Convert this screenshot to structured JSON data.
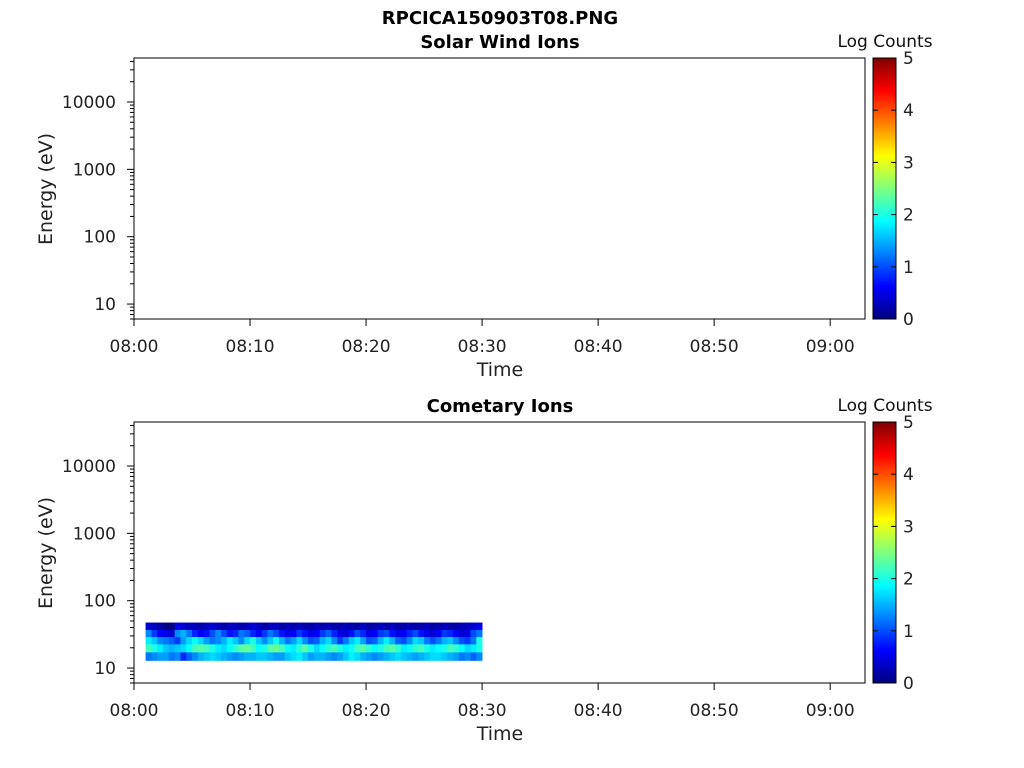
{
  "figure_title": "RPCICA150903T08.PNG",
  "panels": [
    {
      "title": "Solar Wind Ions",
      "ylabel": "Energy (eV)",
      "xlabel": "Time",
      "colorbar_label": "Log Counts"
    },
    {
      "title": "Cometary Ions",
      "ylabel": "Energy (eV)",
      "xlabel": "Time",
      "colorbar_label": "Log Counts"
    }
  ],
  "x_ticks": [
    "08:00",
    "08:10",
    "08:20",
    "08:30",
    "08:40",
    "08:50",
    "09:00"
  ],
  "y_ticks": [
    "10",
    "100",
    "1000",
    "10000"
  ],
  "cbar_ticks": [
    "0",
    "1",
    "2",
    "3",
    "4",
    "5"
  ],
  "colormap": "jet",
  "chart_data": [
    {
      "type": "heatmap",
      "title": "Solar Wind Ions",
      "xlabel": "Time",
      "ylabel": "Energy (eV)",
      "yscale": "log",
      "x_range": [
        "08:00",
        "09:03"
      ],
      "y_range": [
        6,
        45000
      ],
      "colorbar": {
        "label": "Log Counts",
        "range": [
          0,
          5
        ]
      },
      "x_start": "08:01",
      "x_step_min": 0.5,
      "energy_bins": [
        15,
        20,
        26,
        33,
        42
      ],
      "z": []
    },
    {
      "type": "heatmap",
      "title": "Cometary Ions",
      "xlabel": "Time",
      "ylabel": "Energy (eV)",
      "yscale": "log",
      "x_range": [
        "08:00",
        "09:03"
      ],
      "y_range": [
        6,
        45000
      ],
      "colorbar": {
        "label": "Log Counts",
        "range": [
          0,
          5
        ]
      },
      "x_start": "08:01",
      "x_step_min": 0.5,
      "energy_bins": [
        15,
        20,
        26,
        33,
        42
      ],
      "z": [
        [
          1.2,
          1.3,
          1.4,
          1.4,
          1.2,
          1.3,
          0.8,
          1.1,
          1.3,
          1.5,
          1.6,
          1.7,
          1.6,
          1.5,
          1.4,
          1.3,
          1.4,
          1.5,
          1.5,
          1.6,
          1.6,
          1.5,
          1.4,
          1.4,
          1.6,
          1.7,
          1.8,
          1.6,
          1.4,
          1.5,
          1.5,
          1.4,
          1.3,
          1.4,
          1.6,
          1.8,
          1.7,
          1.5,
          1.4,
          1.3,
          1.4,
          1.5,
          1.6,
          1.7,
          1.6,
          1.5,
          1.4,
          1.5,
          1.6,
          1.7,
          1.7,
          1.6,
          1.5,
          1.4,
          1.2,
          1.3,
          1.1,
          1.3
        ],
        [
          2.2,
          2.0,
          1.8,
          1.6,
          1.5,
          1.6,
          1.7,
          1.9,
          2.2,
          2.3,
          2.2,
          2.0,
          1.8,
          1.7,
          1.9,
          2.1,
          2.3,
          2.4,
          2.2,
          1.9,
          2.0,
          2.3,
          2.4,
          2.2,
          1.9,
          1.8,
          2.1,
          2.3,
          2.0,
          1.7,
          1.9,
          2.1,
          2.2,
          2.0,
          1.8,
          1.9,
          2.2,
          2.3,
          2.1,
          1.9,
          2.0,
          2.2,
          2.3,
          2.1,
          1.8,
          1.9,
          2.1,
          2.2,
          2.0,
          1.8,
          1.9,
          2.0,
          2.2,
          2.1,
          1.9,
          1.7,
          1.8,
          2.0
        ],
        [
          1.8,
          1.6,
          1.3,
          1.2,
          1.1,
          0.9,
          1.4,
          1.7,
          1.9,
          1.7,
          1.4,
          1.2,
          1.3,
          1.5,
          1.8,
          1.6,
          1.3,
          1.7,
          2.0,
          1.6,
          1.3,
          1.6,
          1.9,
          1.5,
          1.2,
          1.4,
          1.7,
          1.3,
          1.0,
          1.1,
          1.5,
          1.7,
          1.3,
          0.9,
          1.2,
          1.6,
          1.8,
          1.4,
          1.0,
          1.1,
          1.5,
          1.8,
          1.5,
          1.1,
          1.0,
          1.3,
          1.7,
          1.6,
          1.2,
          1.0,
          1.2,
          1.5,
          1.6,
          1.3,
          1.0,
          0.9,
          1.2,
          2.0
        ],
        [
          1.3,
          0.9,
          0.6,
          0.5,
          0.4,
          1.3,
          1.5,
          1.2,
          0.8,
          0.6,
          0.7,
          1.0,
          1.3,
          1.0,
          0.7,
          0.8,
          1.2,
          1.1,
          0.8,
          0.6,
          0.9,
          1.2,
          1.0,
          0.7,
          0.5,
          0.6,
          0.9,
          0.7,
          0.5,
          0.6,
          0.9,
          1.1,
          0.8,
          0.5,
          0.4,
          0.7,
          1.0,
          0.8,
          0.5,
          0.6,
          0.9,
          1.0,
          0.7,
          0.5,
          0.6,
          0.8,
          1.0,
          0.7,
          0.5,
          0.4,
          0.6,
          0.9,
          0.8,
          0.6,
          0.4,
          0.5,
          1.0,
          1.2
        ],
        [
          0.4,
          0.3,
          0.2,
          0.0,
          0.0,
          0.5,
          0.4,
          0.3,
          0.3,
          0.2,
          0.3,
          0.4,
          0.3,
          0.2,
          0.3,
          0.3,
          0.2,
          0.3,
          0.4,
          0.3,
          0.2,
          0.3,
          0.3,
          0.2,
          0.3,
          0.2,
          0.3,
          0.2,
          0.2,
          0.3,
          0.2,
          0.3,
          0.2,
          0.2,
          0.3,
          0.2,
          0.2,
          0.3,
          0.2,
          0.2,
          0.3,
          0.2,
          0.3,
          0.2,
          0.2,
          0.3,
          0.2,
          0.2,
          0.3,
          0.2,
          0.2,
          0.3,
          0.2,
          0.2,
          0.3,
          0.3,
          0.4,
          0.5
        ]
      ]
    }
  ]
}
